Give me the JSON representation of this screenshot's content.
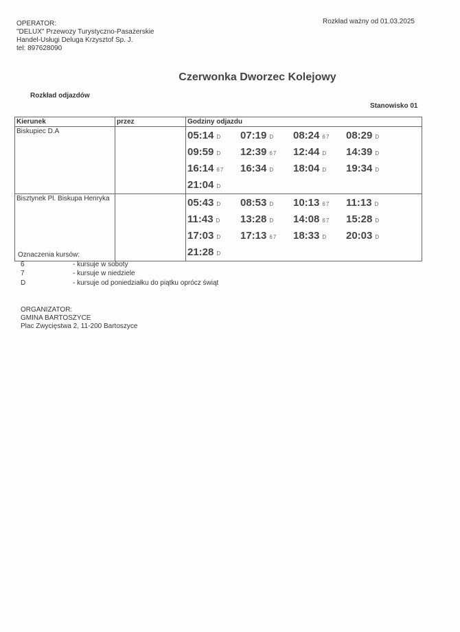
{
  "operator": {
    "label": "OPERATOR:",
    "name_line1": "\"DELUX\" Przewozy Turystyczno-Pasażerskie",
    "name_line2": "Handel-Usługi Deluga Krzysztof Sp. J.",
    "phone": "tel: 897628090"
  },
  "valid_from": "Rozkład ważny od 01.03.2025",
  "stop_name": "Czerwonka Dworzec Kolejowy",
  "subtitle": "Rozkład odjazdów",
  "stand": "Stanowisko 01",
  "table": {
    "headers": [
      "Kierunek",
      "przez",
      "Godziny odjazdu"
    ],
    "rows": [
      {
        "direction": "Biskupiec D.A",
        "via": "",
        "departures": [
          {
            "time": "05:14",
            "mark": "D"
          },
          {
            "time": "07:19",
            "mark": "D"
          },
          {
            "time": "08:24",
            "mark": "67"
          },
          {
            "time": "08:29",
            "mark": "D"
          },
          {
            "time": "09:59",
            "mark": "D"
          },
          {
            "time": "12:39",
            "mark": "67"
          },
          {
            "time": "12:44",
            "mark": "D"
          },
          {
            "time": "14:39",
            "mark": "D"
          },
          {
            "time": "16:14",
            "mark": "67"
          },
          {
            "time": "16:34",
            "mark": "D"
          },
          {
            "time": "18:04",
            "mark": "D"
          },
          {
            "time": "19:34",
            "mark": "D"
          },
          {
            "time": "21:04",
            "mark": "D"
          }
        ]
      },
      {
        "direction": "Bisztynek Pl. Biskupa Henryka",
        "via": "",
        "departures": [
          {
            "time": "05:43",
            "mark": "D"
          },
          {
            "time": "08:53",
            "mark": "D"
          },
          {
            "time": "10:13",
            "mark": "67"
          },
          {
            "time": "11:13",
            "mark": "D"
          },
          {
            "time": "11:43",
            "mark": "D"
          },
          {
            "time": "13:28",
            "mark": "D"
          },
          {
            "time": "14:08",
            "mark": "67"
          },
          {
            "time": "15:28",
            "mark": "D"
          },
          {
            "time": "17:03",
            "mark": "D"
          },
          {
            "time": "17:13",
            "mark": "67"
          },
          {
            "time": "18:33",
            "mark": "D"
          },
          {
            "time": "20:03",
            "mark": "D"
          },
          {
            "time": "21:28",
            "mark": "D"
          }
        ]
      }
    ]
  },
  "legend": {
    "title": "Oznaczenia kursów:",
    "items": [
      {
        "key": "6",
        "desc": "- kursuje w soboty"
      },
      {
        "key": "7",
        "desc": "- kursuje w niedziele"
      },
      {
        "key": "D",
        "desc": "- kursuje od poniedziałku do piątku oprócz świąt"
      }
    ]
  },
  "organizer": {
    "label": "ORGANIZATOR:",
    "name": "GMINA BARTOSZYCE",
    "address": "Plac Zwycięstwa 2, 11-200 Bartoszyce"
  }
}
